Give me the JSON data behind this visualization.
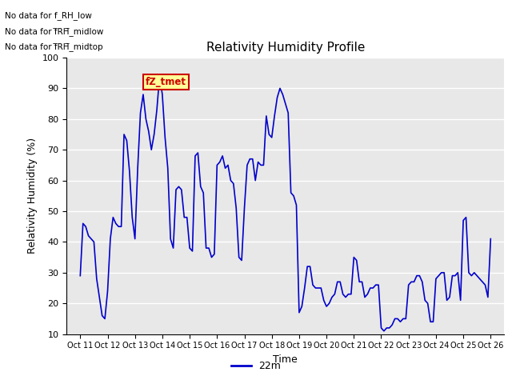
{
  "title": "Relativity Humidity Profile",
  "xlabel": "Time",
  "ylabel": "Relativity Humidity (%)",
  "ylim": [
    10,
    100
  ],
  "yticks": [
    10,
    20,
    30,
    40,
    50,
    60,
    70,
    80,
    90,
    100
  ],
  "line_color": "#0000CC",
  "line_width": 1.2,
  "legend_label": "22m",
  "annotations": [
    "No data for f_RH_low",
    "No data for f̅RH̅_midlow",
    "No data for f̅RH̅_midtop"
  ],
  "legend_box_color": "#FFFF99",
  "legend_box_edge": "#CC0000",
  "legend_text_color": "#CC0000",
  "legend_box_text": "fZ_tmet",
  "plot_bg_color": "#E8E8E8",
  "xtick_labels": [
    "Oct 11",
    "Oct 12",
    "Oct 13",
    "Oct 14",
    "Oct 15",
    "Oct 16",
    "Oct 17",
    "Oct 18",
    "Oct 19",
    "Oct 20",
    "Oct 21",
    "Oct 22",
    "Oct 23",
    "Oct 24",
    "Oct 25",
    "Oct 26"
  ],
  "x_values": [
    0,
    0.1,
    0.2,
    0.3,
    0.4,
    0.5,
    0.6,
    0.7,
    0.8,
    0.9,
    1.0,
    1.1,
    1.2,
    1.3,
    1.4,
    1.5,
    1.6,
    1.7,
    1.8,
    1.9,
    2.0,
    2.1,
    2.2,
    2.3,
    2.4,
    2.5,
    2.6,
    2.7,
    2.8,
    2.9,
    3.0,
    3.1,
    3.2,
    3.3,
    3.4,
    3.5,
    3.6,
    3.7,
    3.8,
    3.9,
    4.0,
    4.1,
    4.2,
    4.3,
    4.4,
    4.5,
    4.6,
    4.7,
    4.8,
    4.9,
    5.0,
    5.1,
    5.2,
    5.3,
    5.4,
    5.5,
    5.6,
    5.7,
    5.8,
    5.9,
    6.0,
    6.1,
    6.2,
    6.3,
    6.4,
    6.5,
    6.6,
    6.7,
    6.8,
    6.9,
    7.0,
    7.1,
    7.2,
    7.3,
    7.4,
    7.5,
    7.6,
    7.7,
    7.8,
    7.9,
    8.0,
    8.1,
    8.2,
    8.3,
    8.4,
    8.5,
    8.6,
    8.7,
    8.8,
    8.9,
    9.0,
    9.1,
    9.2,
    9.3,
    9.4,
    9.5,
    9.6,
    9.7,
    9.8,
    9.9,
    10.0,
    10.1,
    10.2,
    10.3,
    10.4,
    10.5,
    10.6,
    10.7,
    10.8,
    10.9,
    11.0,
    11.1,
    11.2,
    11.3,
    11.4,
    11.5,
    11.6,
    11.7,
    11.8,
    11.9,
    12.0,
    12.1,
    12.2,
    12.3,
    12.4,
    12.5,
    12.6,
    12.7,
    12.8,
    12.9,
    13.0,
    13.1,
    13.2,
    13.3,
    13.4,
    13.5,
    13.6,
    13.7,
    13.8,
    13.9,
    14.0,
    14.1,
    14.2,
    14.3,
    14.4,
    14.5,
    14.6,
    14.7,
    14.8,
    14.9,
    15.0
  ],
  "y_values": [
    29,
    46,
    45,
    42,
    41,
    40,
    28,
    22,
    16,
    15,
    24,
    41,
    48,
    46,
    45,
    45,
    75,
    73,
    63,
    48,
    41,
    64,
    82,
    88,
    80,
    76,
    70,
    75,
    83,
    94,
    88,
    74,
    64,
    41,
    38,
    57,
    58,
    57,
    48,
    48,
    38,
    37,
    68,
    69,
    58,
    56,
    38,
    38,
    35,
    36,
    65,
    66,
    68,
    64,
    65,
    60,
    59,
    51,
    35,
    34,
    51,
    65,
    67,
    67,
    60,
    66,
    65,
    65,
    81,
    75,
    74,
    81,
    87,
    90,
    88,
    85,
    82,
    56,
    55,
    52,
    17,
    19,
    25,
    32,
    32,
    26,
    25,
    25,
    25,
    21,
    19,
    20,
    22,
    23,
    27,
    27,
    23,
    22,
    23,
    23,
    35,
    34,
    27,
    27,
    22,
    23,
    25,
    25,
    26,
    26,
    12,
    11,
    12,
    12,
    13,
    15,
    15,
    14,
    15,
    15,
    26,
    27,
    27,
    29,
    29,
    27,
    21,
    20,
    14,
    14,
    28,
    29,
    30,
    30,
    21,
    22,
    29,
    29,
    30,
    21,
    47,
    48,
    30,
    29,
    30,
    29,
    28,
    27,
    26,
    22,
    41
  ]
}
